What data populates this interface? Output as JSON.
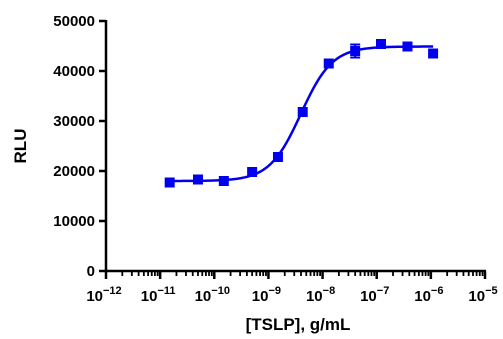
{
  "chart_data": {
    "type": "scatter",
    "title": "",
    "xlabel": "[TSLP], g/mL",
    "ylabel": "RLU",
    "x_scale": "log",
    "x_range": [
      1e-12,
      1e-05
    ],
    "ylim": [
      0,
      50000
    ],
    "y_ticks": [
      0,
      10000,
      20000,
      30000,
      40000,
      50000
    ],
    "y_tick_labels": [
      "0",
      "10000",
      "20000",
      "30000",
      "40000",
      "50000"
    ],
    "x_tick_exponents": [
      -12,
      -11,
      -10,
      -9,
      -8,
      -7,
      -6,
      -5
    ],
    "grid": false,
    "legend": "none",
    "series": [
      {
        "color": "#0000ee",
        "marker": "square",
        "points": [
          {
            "x": 1.5e-11,
            "y": 17700,
            "err": 0
          },
          {
            "x": 5e-11,
            "y": 18300,
            "err": 0
          },
          {
            "x": 1.5e-10,
            "y": 18000,
            "err": 0
          },
          {
            "x": 5e-10,
            "y": 19800,
            "err": 0
          },
          {
            "x": 1.5e-09,
            "y": 22800,
            "err": 0
          },
          {
            "x": 4.3e-09,
            "y": 31800,
            "err": 0
          },
          {
            "x": 1.3e-08,
            "y": 41500,
            "err": 0
          },
          {
            "x": 4e-08,
            "y": 44000,
            "err": 1300
          },
          {
            "x": 1.2e-07,
            "y": 45400,
            "err": 0
          },
          {
            "x": 3.7e-07,
            "y": 44900,
            "err": 0
          },
          {
            "x": 1.1e-06,
            "y": 43500,
            "err": 0
          }
        ],
        "fit": {
          "model": "four-parameter logistic",
          "bottom": 18000,
          "top": 44900,
          "log_ec50": -8.4,
          "hill_slope": 1.5,
          "x_from": 1.5e-11,
          "x_to": 1.1e-06
        }
      }
    ]
  }
}
